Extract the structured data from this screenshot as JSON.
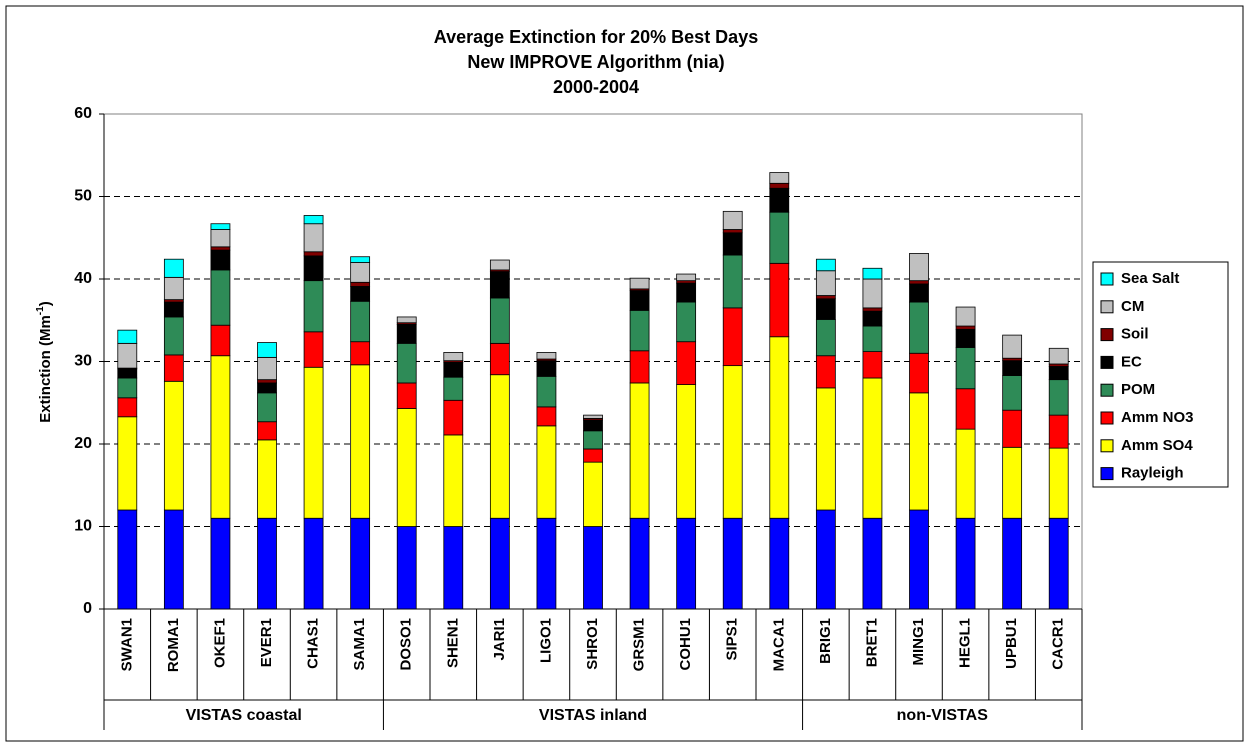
{
  "chart_data": {
    "type": "stacked_bar",
    "title": [
      "Average Extinction for 20% Best Days",
      "New IMPROVE Algorithm (nia)",
      "2000-2004"
    ],
    "y_label": [
      "Extinction (Mm",
      "-1",
      ")"
    ],
    "categories": [
      "SWAN1",
      "ROMA1",
      "OKEF1",
      "EVER1",
      "CHAS1",
      "SAMA1",
      "DOSO1",
      "SHEN1",
      "JARI1",
      "LIGO1",
      "SHRO1",
      "GRSM1",
      "COHU1",
      "SIPS1",
      "MACA1",
      "BRIG1",
      "BRET1",
      "MING1",
      "HEGL1",
      "UPBU1",
      "CACR1"
    ],
    "groups": [
      {
        "label": "VISTAS coastal",
        "size": 6
      },
      {
        "label": "VISTAS inland",
        "size": 9
      },
      {
        "label": "non-VISTAS",
        "size": 6
      }
    ],
    "series": [
      {
        "name": "Rayleigh",
        "color": "#0000ff",
        "values": [
          12,
          12,
          11,
          11,
          11,
          11,
          10,
          10,
          11,
          11,
          10,
          11,
          11,
          11,
          11,
          12,
          11,
          12,
          11,
          11,
          11
        ]
      },
      {
        "name": "Amm SO4",
        "color": "#ffff00",
        "values": [
          11.3,
          15.6,
          19.7,
          9.5,
          18.3,
          18.6,
          14.3,
          11.1,
          17.4,
          11.2,
          7.8,
          16.4,
          16.2,
          18.5,
          22,
          14.8,
          17,
          14.2,
          10.8,
          8.6,
          8.5
        ]
      },
      {
        "name": "Amm NO3",
        "color": "#ff0000",
        "values": [
          2.3,
          3.2,
          3.7,
          2.2,
          4.3,
          2.8,
          3.1,
          4.2,
          3.8,
          2.3,
          1.6,
          3.9,
          5.2,
          7,
          8.9,
          3.9,
          3.2,
          4.8,
          4.9,
          4.5,
          4
        ]
      },
      {
        "name": "POM",
        "color": "#2e8b57",
        "values": [
          2.4,
          4.6,
          6.7,
          3.5,
          6.2,
          4.9,
          4.8,
          2.8,
          5.5,
          3.7,
          2.2,
          4.9,
          4.8,
          6.4,
          6.2,
          4.4,
          3.1,
          6.2,
          5,
          4.2,
          4.3
        ]
      },
      {
        "name": "EC",
        "color": "#000000",
        "values": [
          1.1,
          1.8,
          2.4,
          1.2,
          3,
          1.8,
          2.3,
          1.8,
          3.2,
          1.9,
          1.3,
          2.4,
          2.3,
          2.7,
          2.9,
          2.5,
          1.8,
          2.2,
          2.2,
          1.8,
          1.6
        ]
      },
      {
        "name": "Soil",
        "color": "#800000",
        "values": [
          0.1,
          0.3,
          0.4,
          0.4,
          0.5,
          0.5,
          0.2,
          0.2,
          0.2,
          0.2,
          0.2,
          0.2,
          0.3,
          0.4,
          0.6,
          0.4,
          0.4,
          0.4,
          0.4,
          0.3,
          0.3
        ]
      },
      {
        "name": "CM",
        "color": "#c0c0c0",
        "values": [
          3,
          2.7,
          2.1,
          2.7,
          3.4,
          2.4,
          0.7,
          1,
          1.2,
          0.8,
          0.4,
          1.3,
          0.8,
          2.2,
          1.3,
          3,
          3.5,
          3.3,
          2.3,
          2.8,
          1.9
        ]
      },
      {
        "name": "Sea Salt",
        "color": "#00ffff",
        "values": [
          1.6,
          2.2,
          0.7,
          1.8,
          1,
          0.7,
          0,
          0,
          0,
          0,
          0,
          0,
          0,
          0,
          0,
          1.4,
          1.3,
          0,
          0,
          0,
          0
        ]
      }
    ],
    "ylim": [
      0,
      60
    ],
    "yticks": [
      0,
      10,
      20,
      30,
      40,
      50,
      60
    ],
    "grid": true,
    "legend": "right"
  }
}
